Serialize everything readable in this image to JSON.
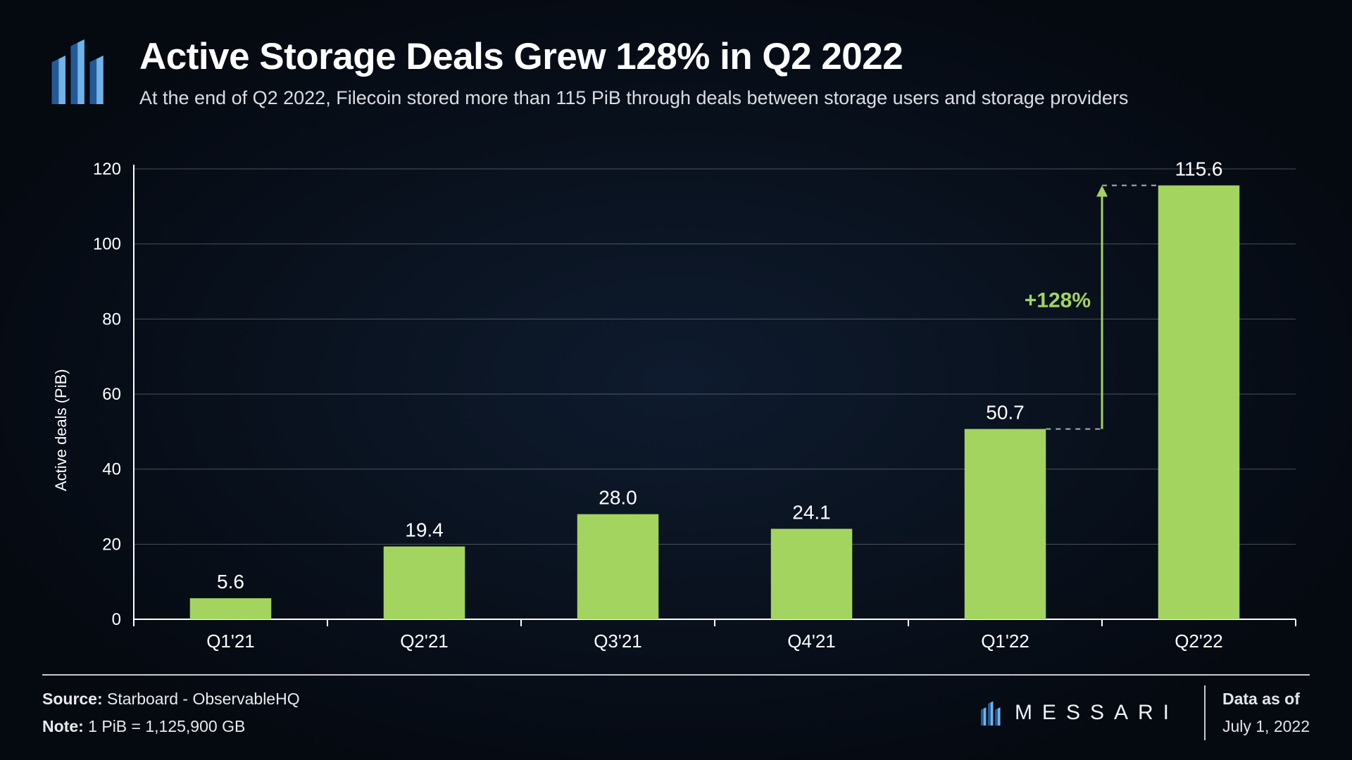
{
  "header": {
    "title": "Active Storage Deals Grew 128% in Q2 2022",
    "subtitle": "At the end of Q2 2022, Filecoin stored more than 115 PiB through deals between storage users and storage providers"
  },
  "chart": {
    "type": "bar",
    "ylabel": "Active deals (PiB)",
    "ylim": [
      0,
      120
    ],
    "ytick_step": 20,
    "categories": [
      "Q1'21",
      "Q2'21",
      "Q3'21",
      "Q4'21",
      "Q1'22",
      "Q2'22"
    ],
    "values": [
      5.6,
      19.4,
      28.0,
      24.1,
      50.7,
      115.6
    ],
    "value_labels": [
      "5.6",
      "19.4",
      "28.0",
      "24.1",
      "50.7",
      "115.6"
    ],
    "bar_color": "#a3d45f",
    "axis_color": "#ffffff",
    "grid_color": "rgba(200,205,212,0.35)",
    "tick_font_size": 24,
    "axis_label_font_size": 22,
    "value_font_size": 28,
    "category_font_size": 26,
    "bar_width_ratio": 0.42,
    "background": "transparent",
    "annotation": {
      "from_index": 4,
      "to_index": 5,
      "label": "+128%",
      "label_color": "#a3d45f",
      "line_color": "#a3d45f",
      "dash_color": "#a9b0b9",
      "label_font_size": 30
    }
  },
  "footer": {
    "source_label": "Source:",
    "source_value": "Starboard - ObservableHQ",
    "note_label": "Note:",
    "note_value": "1 PiB = 1,125,900 GB",
    "brand": "MESSARI",
    "data_as_of_label": "Data as of",
    "data_as_of_value": "July 1, 2022"
  },
  "logo_colors": {
    "light": "#6fb4e8",
    "dark": "#1a4f8e"
  }
}
